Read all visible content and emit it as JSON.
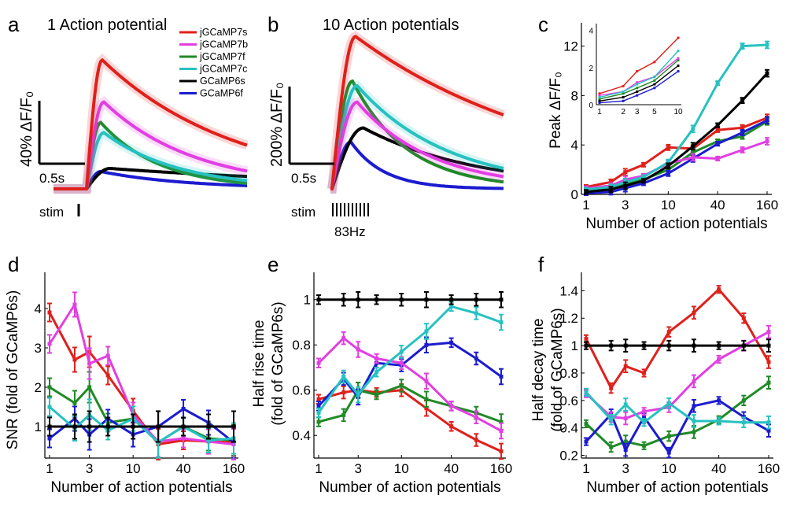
{
  "colors": {
    "jGCaMP7s": "#e0201b",
    "jGCaMP7b": "#e23ee2",
    "jGCaMP7f": "#1f8a26",
    "jGCaMP7c": "#27c1c1",
    "GCaMP6s": "#000000",
    "GCaMP6f": "#1b1bd0"
  },
  "panel_a": {
    "letter": "a",
    "title": "1 Action potential",
    "y_scalebar_label": "40% ΔF/F₀",
    "x_scalebar_label": "0.5s",
    "stim_label": "stim"
  },
  "panel_b": {
    "letter": "b",
    "title": "10 Action potentials",
    "y_scalebar_label": "200% ΔF/F₀",
    "x_scalebar_label": "0.5s",
    "stim_label": "stim",
    "freq_label": "83Hz"
  },
  "legend": [
    "jGCaMP7s",
    "jGCaMP7b",
    "jGCaMP7f",
    "jGCaMP7c",
    "GCaMP6s",
    "GCaMP6f"
  ],
  "panel_letters": {
    "c": "c",
    "d": "d",
    "e": "e",
    "f": "f"
  },
  "chart_data": [
    {
      "panel": "a",
      "type": "line",
      "title": "1 Action potential",
      "xlabel": "",
      "ylabel": "",
      "peaks_dff_percent": {
        "jGCaMP7s": 126,
        "jGCaMP7b": 85,
        "jGCaMP7f": 65,
        "jGCaMP7c": 55,
        "GCaMP6s": 20,
        "GCaMP6f": 17
      }
    },
    {
      "panel": "b",
      "type": "line",
      "title": "10 Action potentials",
      "xlabel": "",
      "ylabel": "",
      "peaks_dff_percent": {
        "jGCaMP7s": 650,
        "jGCaMP7b": 370,
        "jGCaMP7f": 460,
        "jGCaMP7c": 440,
        "GCaMP6s": 260,
        "GCaMP6f": 200
      }
    },
    {
      "panel": "c",
      "type": "line",
      "xlabel": "Number of action potentials",
      "ylabel": "Peak ΔF/F₀",
      "x": [
        1,
        2,
        3,
        5,
        10,
        20,
        40,
        80,
        160
      ],
      "xtick_labels": [
        "1",
        "3",
        "10",
        "40",
        "160"
      ],
      "xticks": [
        1,
        3,
        10,
        40,
        160
      ],
      "yticks": [
        0,
        4,
        8,
        12
      ],
      "ylim": [
        0,
        13.5
      ],
      "series": [
        {
          "name": "jGCaMP7s",
          "values": [
            0.6,
            1.0,
            1.8,
            2.4,
            3.8,
            3.7,
            5.2,
            5.4,
            6.2
          ]
        },
        {
          "name": "jGCaMP7b",
          "values": [
            0.5,
            0.7,
            1.2,
            1.5,
            2.5,
            3.0,
            2.9,
            3.6,
            4.3
          ]
        },
        {
          "name": "jGCaMP7f",
          "values": [
            0.3,
            0.5,
            0.8,
            1.2,
            2.0,
            3.4,
            4.3,
            4.7,
            5.9
          ]
        },
        {
          "name": "jGCaMP7c",
          "values": [
            0.4,
            0.6,
            1.0,
            1.4,
            2.6,
            5.3,
            9.0,
            12.0,
            12.1
          ]
        },
        {
          "name": "GCaMP6s",
          "values": [
            0.2,
            0.4,
            0.7,
            1.1,
            2.3,
            3.9,
            5.6,
            7.6,
            9.8
          ]
        },
        {
          "name": "GCaMP6f",
          "values": [
            0.1,
            0.2,
            0.5,
            0.9,
            1.7,
            2.9,
            4.1,
            5.0,
            6.0
          ]
        }
      ],
      "inset": {
        "x": [
          1,
          2,
          3,
          5,
          10
        ],
        "xtick_labels": [
          "1",
          "2",
          "3",
          "5",
          "10"
        ],
        "yticks": [
          0,
          2,
          4
        ],
        "ylim": [
          0,
          4.2
        ],
        "series": [
          {
            "name": "jGCaMP7s",
            "values": [
              0.6,
              1.0,
              1.8,
              2.3,
              3.6
            ]
          },
          {
            "name": "jGCaMP7b",
            "values": [
              0.5,
              0.7,
              1.2,
              1.5,
              2.5
            ]
          },
          {
            "name": "jGCaMP7f",
            "values": [
              0.3,
              0.6,
              0.9,
              1.3,
              2.4
            ]
          },
          {
            "name": "jGCaMP7c",
            "values": [
              0.4,
              0.7,
              1.1,
              1.5,
              2.9
            ]
          },
          {
            "name": "GCaMP6s",
            "values": [
              0.2,
              0.4,
              0.7,
              1.1,
              2.1
            ]
          },
          {
            "name": "GCaMP6f",
            "values": [
              0.1,
              0.2,
              0.5,
              0.9,
              1.8
            ]
          }
        ]
      }
    },
    {
      "panel": "d",
      "type": "line",
      "xlabel": "Number of action potentials",
      "ylabel": "SNR (fold of GCaMP6s)",
      "x": [
        1,
        2,
        3,
        5,
        10,
        20,
        40,
        80,
        160
      ],
      "xtick_labels": [
        "1",
        "3",
        "10",
        "40",
        "160"
      ],
      "xticks": [
        1,
        3,
        10,
        40,
        160
      ],
      "yticks": [
        1,
        2,
        3,
        4
      ],
      "ylim": [
        0.2,
        4.8
      ],
      "series": [
        {
          "name": "jGCaMP7s",
          "values": [
            3.9,
            2.7,
            2.9,
            2.3,
            1.4,
            0.55,
            0.65,
            0.62,
            0.6
          ]
        },
        {
          "name": "jGCaMP7b",
          "values": [
            3.1,
            4.1,
            2.6,
            2.8,
            1.3,
            0.62,
            0.7,
            0.62,
            0.55
          ]
        },
        {
          "name": "jGCaMP7f",
          "values": [
            2.0,
            1.6,
            2.0,
            1.1,
            1.2,
            0.6,
            1.0,
            0.7,
            0.65
          ]
        },
        {
          "name": "jGCaMP7c",
          "values": [
            1.5,
            0.95,
            1.3,
            0.9,
            1.2,
            0.6,
            1.0,
            0.65,
            0.7
          ]
        },
        {
          "name": "GCaMP6s",
          "values": [
            1.0,
            1.0,
            1.0,
            1.0,
            1.0,
            1.0,
            1.0,
            1.0,
            1.0
          ]
        },
        {
          "name": "GCaMP6f",
          "values": [
            0.7,
            1.2,
            0.8,
            1.2,
            0.8,
            1.0,
            1.45,
            1.1,
            0.6
          ]
        }
      ]
    },
    {
      "panel": "e",
      "type": "line",
      "xlabel": "Number of action potentials",
      "ylabel": "Half rise time (fold of GCaMP6s)",
      "x": [
        1,
        2,
        3,
        5,
        10,
        20,
        40,
        80,
        160
      ],
      "xtick_labels": [
        "1",
        "3",
        "10",
        "40",
        "160"
      ],
      "xticks": [
        1,
        3,
        10,
        40,
        160
      ],
      "yticks": [
        0.4,
        0.6,
        0.8,
        1
      ],
      "ytick_labels": [
        "0.4",
        "0.6",
        "0.8",
        "1"
      ],
      "ylim": [
        0.3,
        1.1
      ],
      "series": [
        {
          "name": "jGCaMP7s",
          "values": [
            0.56,
            0.59,
            0.6,
            0.59,
            0.6,
            0.52,
            0.44,
            0.38,
            0.33
          ]
        },
        {
          "name": "jGCaMP7b",
          "values": [
            0.72,
            0.83,
            0.78,
            0.74,
            0.72,
            0.64,
            0.53,
            0.48,
            0.42
          ]
        },
        {
          "name": "jGCaMP7f",
          "values": [
            0.46,
            0.49,
            0.6,
            0.58,
            0.62,
            0.56,
            0.53,
            0.5,
            0.46
          ]
        },
        {
          "name": "jGCaMP7c",
          "values": [
            0.5,
            0.66,
            0.58,
            0.68,
            0.77,
            0.86,
            0.97,
            0.94,
            0.9
          ]
        },
        {
          "name": "GCaMP6s",
          "values": [
            1.0,
            1.0,
            1.0,
            1.0,
            1.0,
            1.0,
            1.0,
            1.0,
            1.0
          ]
        },
        {
          "name": "GCaMP6f",
          "values": [
            0.53,
            0.65,
            0.57,
            0.72,
            0.71,
            0.8,
            0.81,
            0.74,
            0.66
          ]
        }
      ]
    },
    {
      "panel": "f",
      "type": "line",
      "xlabel": "Number of action potentials",
      "ylabel": "Half decay time (fold of GCaMP6s)",
      "x": [
        1,
        2,
        3,
        5,
        10,
        20,
        40,
        80,
        160
      ],
      "xtick_labels": [
        "1",
        "3",
        "10",
        "40",
        "160"
      ],
      "xticks": [
        1,
        3,
        10,
        40,
        160
      ],
      "yticks": [
        0.2,
        0.4,
        0.6,
        0.8,
        1,
        1.2,
        1.4
      ],
      "ytick_labels": [
        "0.2",
        "0.4",
        "0.6",
        "0.8",
        "1",
        "1.2",
        "1.4"
      ],
      "ylim": [
        0.18,
        1.5
      ],
      "series": [
        {
          "name": "jGCaMP7s",
          "values": [
            1.05,
            0.69,
            0.85,
            0.8,
            1.1,
            1.24,
            1.41,
            1.2,
            0.88
          ]
        },
        {
          "name": "jGCaMP7b",
          "values": [
            0.65,
            0.48,
            0.47,
            0.52,
            0.55,
            0.74,
            0.9,
            1.0,
            1.1
          ]
        },
        {
          "name": "jGCaMP7f",
          "values": [
            0.43,
            0.26,
            0.3,
            0.27,
            0.34,
            0.37,
            0.46,
            0.6,
            0.73
          ]
        },
        {
          "name": "jGCaMP7c",
          "values": [
            0.66,
            0.46,
            0.57,
            0.44,
            0.58,
            0.45,
            0.45,
            0.44,
            0.44
          ]
        },
        {
          "name": "GCaMP6s",
          "values": [
            1.0,
            1.0,
            1.0,
            1.0,
            1.0,
            1.0,
            1.0,
            1.0,
            1.0
          ]
        },
        {
          "name": "GCaMP6f",
          "values": [
            0.3,
            0.5,
            0.24,
            0.48,
            0.22,
            0.56,
            0.6,
            0.48,
            0.38
          ]
        }
      ]
    }
  ]
}
